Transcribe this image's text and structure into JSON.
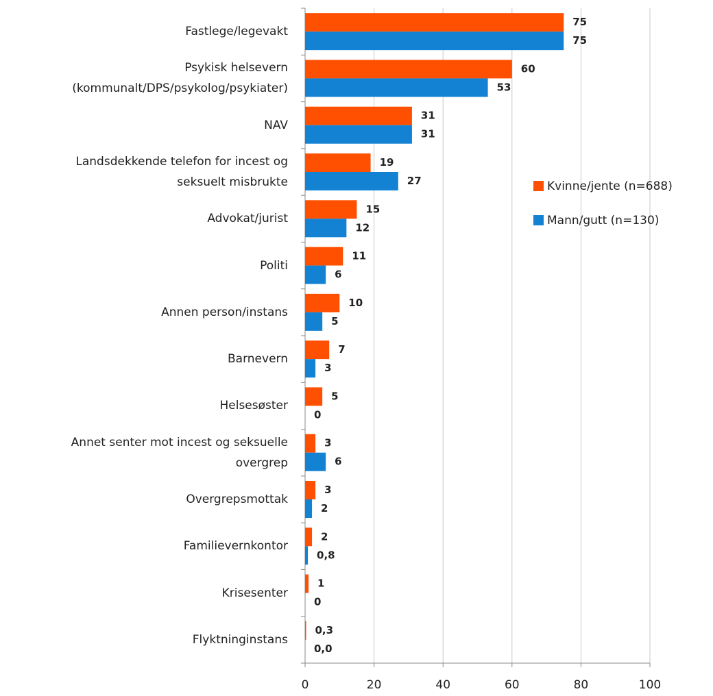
{
  "chart_data": {
    "type": "hbar",
    "categories": [
      "Fastlege/legevakt",
      "Psykisk helsevern\n(kommunalt/DPS/psykolog/psykiater)",
      "NAV",
      "Landsdekkende telefon for incest og\nseksuelt misbrukte",
      "Advokat/jurist",
      "Politi",
      "Annen person/instans",
      "Barnevern",
      "Helsesøster",
      "Annet senter mot incest og seksuelle\novergrep",
      "Overgrepsmottak",
      "Familievernkontor",
      "Krisesenter",
      "Flyktninginstans"
    ],
    "series": [
      {
        "name": "Kvinne/jente (n=688)",
        "color": "#ff4f00",
        "values": [
          75,
          60,
          31,
          19,
          15,
          11,
          10,
          7,
          5,
          3,
          3,
          2,
          1,
          0.3
        ],
        "value_labels": [
          "75",
          "60",
          "31",
          "19",
          "15",
          "11",
          "10",
          "7",
          "5",
          "3",
          "3",
          "2",
          "1",
          "0,3"
        ]
      },
      {
        "name": "Mann/gutt (n=130)",
        "color": "#1382d2",
        "values": [
          75,
          53,
          31,
          27,
          12,
          6,
          5,
          3,
          0,
          6,
          2,
          0.8,
          0,
          0.0
        ],
        "value_labels": [
          "75",
          "53",
          "31",
          "27",
          "12",
          "6",
          "5",
          "3",
          "0",
          "6",
          "2",
          "0,8",
          "0",
          "0,0"
        ]
      }
    ],
    "xlim": [
      0,
      100
    ],
    "xticks": [
      0,
      20,
      40,
      60,
      80,
      100
    ],
    "grid": true,
    "legend": "right"
  }
}
